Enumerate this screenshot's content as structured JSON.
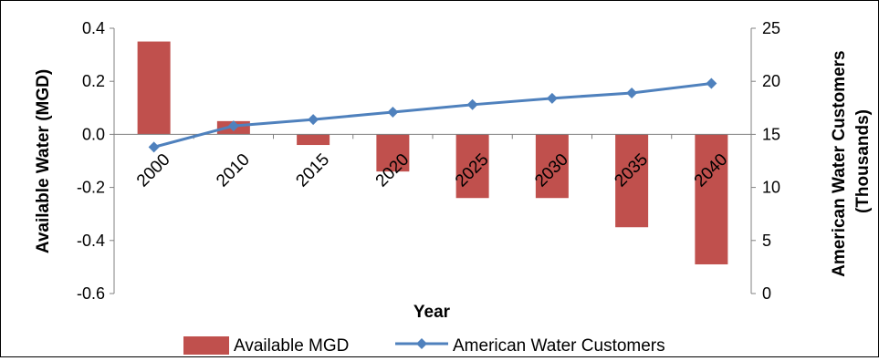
{
  "chart_data": {
    "type": "bar",
    "categories": [
      "2000",
      "2010",
      "2015",
      "2020",
      "2025",
      "2030",
      "2035",
      "2040"
    ],
    "xlabel": "Year",
    "y_left": {
      "label": "Available Water (MGD)",
      "range": [
        -0.6,
        0.4
      ],
      "ticks": [
        "0.4",
        "0.2",
        "0.0",
        "-0.2",
        "-0.4",
        "-0.6"
      ],
      "tick_values": [
        0.4,
        0.2,
        0.0,
        -0.2,
        -0.4,
        -0.6
      ]
    },
    "y_right": {
      "label_line1": "American Water Customers",
      "label_line2": "(Thousands)",
      "range": [
        0,
        25
      ],
      "ticks": [
        "25",
        "20",
        "15",
        "10",
        "5",
        "0"
      ],
      "tick_values": [
        25,
        20,
        15,
        10,
        5,
        0
      ]
    },
    "series": [
      {
        "name": "Available MGD",
        "type": "bar",
        "axis": "left",
        "color": "#c0504d",
        "values": [
          0.35,
          0.05,
          -0.04,
          -0.14,
          -0.24,
          -0.24,
          -0.35,
          -0.49
        ]
      },
      {
        "name": "American Water Customers",
        "type": "line",
        "axis": "right",
        "color": "#4f81bd",
        "marker": "diamond",
        "values": [
          13.8,
          15.8,
          16.4,
          17.1,
          17.8,
          18.4,
          18.9,
          19.8
        ]
      }
    ],
    "legend": "bottom",
    "grid": false
  }
}
